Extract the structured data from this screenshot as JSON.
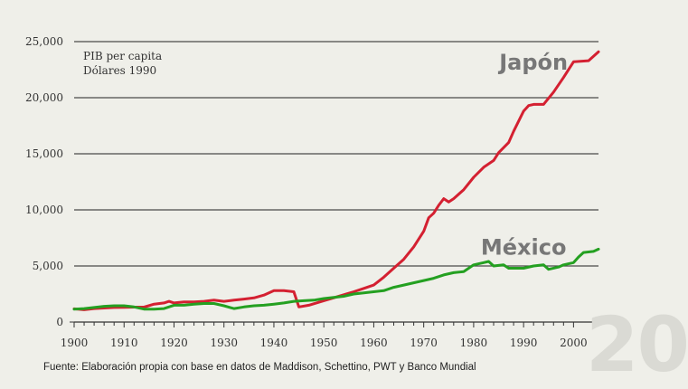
{
  "chart_data": {
    "type": "line",
    "note": [
      "PIB per capita",
      "Dólares 1990"
    ],
    "xlim": [
      1900,
      2005
    ],
    "ylim": [
      0,
      25000
    ],
    "x_ticks": [
      1900,
      1910,
      1920,
      1930,
      1940,
      1950,
      1960,
      1970,
      1980,
      1990,
      2000
    ],
    "y_ticks": [
      0,
      5000,
      10000,
      15000,
      20000,
      25000
    ],
    "y_tick_labels": [
      "0",
      "5,000",
      "10,000",
      "15,000",
      "20,000",
      "25,000"
    ],
    "grid": "horizontal",
    "series": [
      {
        "name": "Japón",
        "color": "#d42031",
        "points": [
          [
            1900,
            1180
          ],
          [
            1902,
            1100
          ],
          [
            1904,
            1200
          ],
          [
            1906,
            1250
          ],
          [
            1908,
            1300
          ],
          [
            1910,
            1310
          ],
          [
            1912,
            1330
          ],
          [
            1914,
            1330
          ],
          [
            1916,
            1600
          ],
          [
            1918,
            1700
          ],
          [
            1919,
            1850
          ],
          [
            1920,
            1700
          ],
          [
            1922,
            1800
          ],
          [
            1924,
            1800
          ],
          [
            1926,
            1850
          ],
          [
            1928,
            1950
          ],
          [
            1930,
            1850
          ],
          [
            1932,
            1950
          ],
          [
            1934,
            2050
          ],
          [
            1936,
            2150
          ],
          [
            1938,
            2400
          ],
          [
            1940,
            2800
          ],
          [
            1942,
            2800
          ],
          [
            1944,
            2700
          ],
          [
            1945,
            1350
          ],
          [
            1947,
            1500
          ],
          [
            1950,
            1900
          ],
          [
            1953,
            2300
          ],
          [
            1956,
            2700
          ],
          [
            1958,
            3000
          ],
          [
            1960,
            3300
          ],
          [
            1962,
            4000
          ],
          [
            1964,
            4800
          ],
          [
            1966,
            5600
          ],
          [
            1968,
            6700
          ],
          [
            1970,
            8100
          ],
          [
            1971,
            9300
          ],
          [
            1972,
            9700
          ],
          [
            1973,
            10400
          ],
          [
            1974,
            11000
          ],
          [
            1975,
            10700
          ],
          [
            1976,
            11000
          ],
          [
            1978,
            11800
          ],
          [
            1980,
            12900
          ],
          [
            1982,
            13800
          ],
          [
            1984,
            14400
          ],
          [
            1985,
            15100
          ],
          [
            1987,
            16000
          ],
          [
            1988,
            17000
          ],
          [
            1990,
            18800
          ],
          [
            1991,
            19300
          ],
          [
            1992,
            19400
          ],
          [
            1994,
            19400
          ],
          [
            1996,
            20500
          ],
          [
            1998,
            21800
          ],
          [
            2000,
            23200
          ],
          [
            2003,
            23300
          ],
          [
            2005,
            24100
          ]
        ],
        "label_year": 1992,
        "label_value": 22500
      },
      {
        "name": "México",
        "color": "#24a021",
        "points": [
          [
            1900,
            1150
          ],
          [
            1902,
            1200
          ],
          [
            1904,
            1300
          ],
          [
            1906,
            1400
          ],
          [
            1908,
            1450
          ],
          [
            1910,
            1450
          ],
          [
            1912,
            1350
          ],
          [
            1914,
            1150
          ],
          [
            1916,
            1150
          ],
          [
            1918,
            1200
          ],
          [
            1920,
            1500
          ],
          [
            1922,
            1500
          ],
          [
            1924,
            1600
          ],
          [
            1926,
            1650
          ],
          [
            1928,
            1650
          ],
          [
            1930,
            1450
          ],
          [
            1932,
            1200
          ],
          [
            1934,
            1350
          ],
          [
            1936,
            1450
          ],
          [
            1938,
            1500
          ],
          [
            1940,
            1600
          ],
          [
            1942,
            1700
          ],
          [
            1944,
            1850
          ],
          [
            1946,
            1900
          ],
          [
            1948,
            1950
          ],
          [
            1950,
            2100
          ],
          [
            1952,
            2200
          ],
          [
            1954,
            2300
          ],
          [
            1956,
            2500
          ],
          [
            1958,
            2600
          ],
          [
            1960,
            2700
          ],
          [
            1962,
            2800
          ],
          [
            1964,
            3100
          ],
          [
            1966,
            3300
          ],
          [
            1968,
            3500
          ],
          [
            1970,
            3700
          ],
          [
            1972,
            3900
          ],
          [
            1974,
            4200
          ],
          [
            1976,
            4400
          ],
          [
            1978,
            4500
          ],
          [
            1980,
            5100
          ],
          [
            1982,
            5300
          ],
          [
            1983,
            5400
          ],
          [
            1984,
            5000
          ],
          [
            1986,
            5100
          ],
          [
            1987,
            4800
          ],
          [
            1990,
            4800
          ],
          [
            1992,
            5000
          ],
          [
            1994,
            5100
          ],
          [
            1995,
            4700
          ],
          [
            1997,
            4900
          ],
          [
            1998,
            5100
          ],
          [
            2000,
            5300
          ],
          [
            2001,
            5800
          ],
          [
            2002,
            6200
          ],
          [
            2004,
            6300
          ],
          [
            2005,
            6500
          ]
        ],
        "label_year": 1990,
        "label_value": 6000
      }
    ]
  },
  "source": "Fuente: Elaboración propia con base en datos de Maddison, Schettino, PWT y Banco Mundial",
  "watermark": "20"
}
